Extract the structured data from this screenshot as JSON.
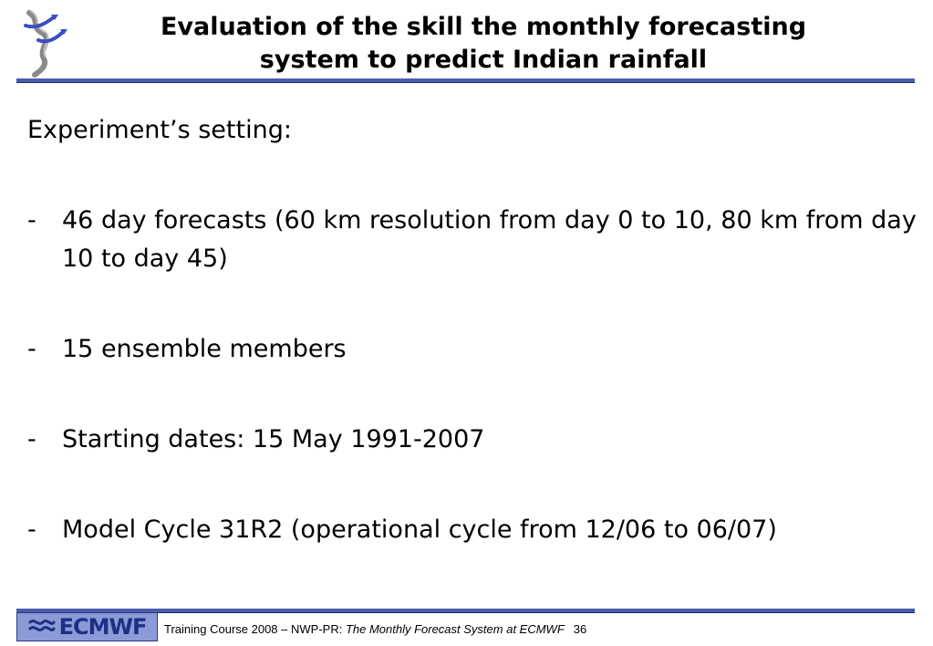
{
  "title": {
    "line1": "Evaluation of the skill the monthly forecasting",
    "line2": "system to predict Indian  rainfall"
  },
  "body": {
    "heading": "Experiment’s setting:",
    "bullets": [
      {
        "marker": "-",
        "text": "46 day forecasts  (60 km resolution from day 0 to 10, 80 km from day 10 to day 45)"
      },
      {
        "marker": "-",
        "text": "15 ensemble members"
      },
      {
        "marker": "-",
        "text": "Starting dates: 15 May 1991-2007"
      },
      {
        "marker": "-",
        "text": "Model Cycle 31R2 (operational cycle from 12/06 to 06/07)"
      }
    ]
  },
  "footer": {
    "logo_text": "ECMWF",
    "course": "Training Course 2008 – NWP-PR: ",
    "presentation": "The Monthly Forecast System at ECMWF",
    "page_number": "36"
  },
  "colors": {
    "rule": "#4a5dad",
    "logo_background": "#8a9bd8",
    "logo_text": "#1f2f82"
  },
  "icons": {
    "header_logo": "ecmwf-swirl-logo",
    "footer_logo": "ecmwf-logo"
  }
}
